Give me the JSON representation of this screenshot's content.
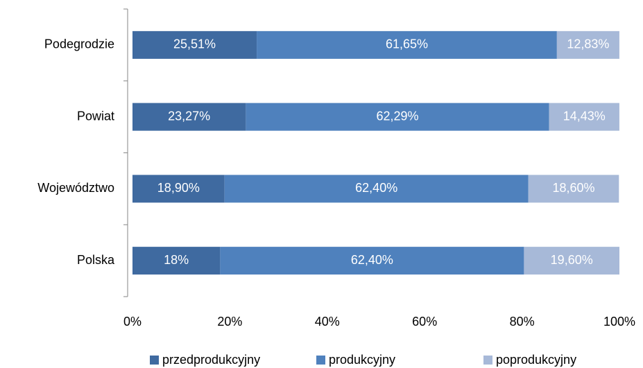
{
  "chart_data": {
    "type": "bar",
    "orientation": "horizontal",
    "stacked": true,
    "categories": [
      "Podegrodzie",
      "Powiat",
      "Województwo",
      "Polska"
    ],
    "series": [
      {
        "name": "przedprodukcyjny",
        "color": "#3f6aa0",
        "values": [
          25.51,
          23.27,
          18.9,
          18
        ],
        "value_labels": [
          "25,51%",
          "23,27%",
          "18,90%",
          "18%"
        ]
      },
      {
        "name": "produkcyjny",
        "color": "#4f81bd",
        "values": [
          61.65,
          62.29,
          62.4,
          62.4
        ],
        "value_labels": [
          "61,65%",
          "62,29%",
          "62,40%",
          "62,40%"
        ]
      },
      {
        "name": "poprodukcyjny",
        "color": "#a7b9d8",
        "values": [
          12.83,
          14.43,
          18.6,
          19.6
        ],
        "value_labels": [
          "12,83%",
          "14,43%",
          "18,60%",
          "19,60%"
        ]
      }
    ],
    "xlim": [
      0,
      100
    ],
    "xticks": [
      {
        "value": 0,
        "label": "0%"
      },
      {
        "value": 20,
        "label": "20%"
      },
      {
        "value": 40,
        "label": "40%"
      },
      {
        "value": 60,
        "label": "60%"
      },
      {
        "value": 80,
        "label": "80%"
      },
      {
        "value": 100,
        "label": "100%"
      }
    ],
    "legend": "bottom"
  }
}
